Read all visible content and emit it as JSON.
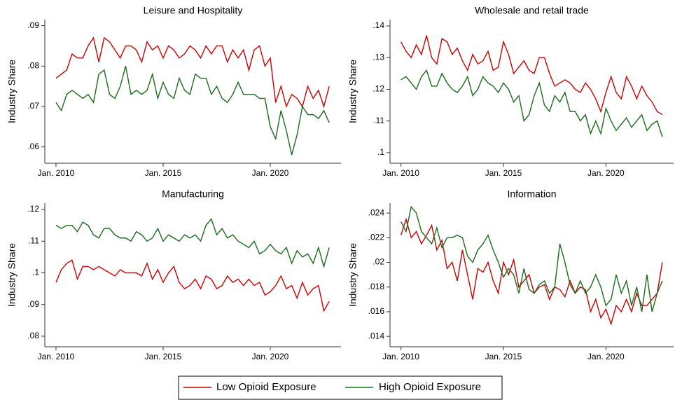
{
  "chart_data": [
    {
      "type": "line",
      "title": "Leisure and Hospitality",
      "y_label": "Industry Share",
      "x": [
        2010,
        2010.25,
        2010.5,
        2010.75,
        2011,
        2011.25,
        2011.5,
        2011.75,
        2012,
        2012.25,
        2012.5,
        2012.75,
        2013,
        2013.25,
        2013.5,
        2013.75,
        2014,
        2014.25,
        2014.5,
        2014.75,
        2015,
        2015.25,
        2015.5,
        2015.75,
        2016,
        2016.25,
        2016.5,
        2016.75,
        2017,
        2017.25,
        2017.5,
        2017.75,
        2018,
        2018.25,
        2018.5,
        2018.75,
        2019,
        2019.25,
        2019.5,
        2019.75,
        2020,
        2020.25,
        2020.5,
        2020.75,
        2021,
        2021.25,
        2021.5,
        2021.75,
        2022,
        2022.25,
        2022.5,
        2022.75
      ],
      "xlim": [
        2009.74,
        2023.3
      ],
      "xticks": [
        {
          "value": 2010,
          "label": "Jan. 2010"
        },
        {
          "value": 2015,
          "label": "Jan. 2015"
        },
        {
          "value": 2020,
          "label": "Jan. 2020"
        }
      ],
      "ylim": [
        0.057,
        0.0915
      ],
      "yticks": [
        {
          "value": 0.06,
          "label": ".06"
        },
        {
          "value": 0.07,
          "label": ".07"
        },
        {
          "value": 0.08,
          "label": ".08"
        },
        {
          "value": 0.09,
          "label": ".09"
        }
      ],
      "series": [
        {
          "name": "Low Opioid Exposure",
          "color": "#cc0000",
          "values": [
            0.077,
            0.078,
            0.079,
            0.083,
            0.082,
            0.082,
            0.085,
            0.087,
            0.081,
            0.087,
            0.086,
            0.084,
            0.082,
            0.085,
            0.085,
            0.084,
            0.081,
            0.086,
            0.084,
            0.085,
            0.082,
            0.085,
            0.084,
            0.082,
            0.083,
            0.085,
            0.084,
            0.082,
            0.085,
            0.083,
            0.085,
            0.085,
            0.081,
            0.084,
            0.082,
            0.084,
            0.079,
            0.084,
            0.085,
            0.08,
            0.082,
            0.071,
            0.075,
            0.07,
            0.073,
            0.072,
            0.07,
            0.075,
            0.072,
            0.074,
            0.07,
            0.075
          ]
        },
        {
          "name": "High Opioid Exposure",
          "color": "#1a6b1a",
          "values": [
            0.071,
            0.069,
            0.073,
            0.074,
            0.073,
            0.072,
            0.073,
            0.071,
            0.078,
            0.079,
            0.073,
            0.072,
            0.075,
            0.08,
            0.073,
            0.074,
            0.073,
            0.074,
            0.078,
            0.072,
            0.076,
            0.073,
            0.072,
            0.077,
            0.074,
            0.073,
            0.078,
            0.077,
            0.077,
            0.073,
            0.075,
            0.072,
            0.071,
            0.073,
            0.076,
            0.073,
            0.073,
            0.073,
            0.072,
            0.072,
            0.065,
            0.062,
            0.069,
            0.064,
            0.058,
            0.063,
            0.07,
            0.068,
            0.068,
            0.067,
            0.069,
            0.066
          ]
        }
      ]
    },
    {
      "type": "line",
      "title": "Wholesale and retail trade",
      "y_label": "Industry Share",
      "x": [
        2010,
        2010.25,
        2010.5,
        2010.75,
        2011,
        2011.25,
        2011.5,
        2011.75,
        2012,
        2012.25,
        2012.5,
        2012.75,
        2013,
        2013.25,
        2013.5,
        2013.75,
        2014,
        2014.25,
        2014.5,
        2014.75,
        2015,
        2015.25,
        2015.5,
        2015.75,
        2016,
        2016.25,
        2016.5,
        2016.75,
        2017,
        2017.25,
        2017.5,
        2017.75,
        2018,
        2018.25,
        2018.5,
        2018.75,
        2019,
        2019.25,
        2019.5,
        2019.75,
        2020,
        2020.25,
        2020.5,
        2020.75,
        2021,
        2021.25,
        2021.5,
        2021.75,
        2022,
        2022.25,
        2022.5,
        2022.75
      ],
      "xlim": [
        2009.74,
        2023.3
      ],
      "xticks": [
        {
          "value": 2010,
          "label": "Jan. 2010"
        },
        {
          "value": 2015,
          "label": "Jan. 2015"
        },
        {
          "value": 2020,
          "label": "Jan. 2020"
        }
      ],
      "ylim": [
        0.098,
        0.142
      ],
      "yticks": [
        {
          "value": 0.1,
          "label": ".1"
        },
        {
          "value": 0.11,
          "label": ".11"
        },
        {
          "value": 0.12,
          "label": ".12"
        },
        {
          "value": 0.13,
          "label": ".13"
        },
        {
          "value": 0.14,
          "label": ".14"
        }
      ],
      "series": [
        {
          "name": "Low Opioid Exposure",
          "color": "#cc0000",
          "values": [
            0.135,
            0.132,
            0.13,
            0.134,
            0.131,
            0.137,
            0.13,
            0.128,
            0.136,
            0.135,
            0.131,
            0.133,
            0.129,
            0.126,
            0.131,
            0.128,
            0.129,
            0.132,
            0.126,
            0.127,
            0.135,
            0.131,
            0.125,
            0.127,
            0.129,
            0.126,
            0.125,
            0.13,
            0.13,
            0.125,
            0.121,
            0.122,
            0.123,
            0.122,
            0.12,
            0.119,
            0.122,
            0.12,
            0.117,
            0.113,
            0.119,
            0.124,
            0.119,
            0.117,
            0.124,
            0.121,
            0.117,
            0.121,
            0.118,
            0.116,
            0.113,
            0.112
          ]
        },
        {
          "name": "High Opioid Exposure",
          "color": "#1a6b1a",
          "values": [
            0.123,
            0.124,
            0.122,
            0.12,
            0.124,
            0.126,
            0.121,
            0.121,
            0.125,
            0.122,
            0.12,
            0.119,
            0.121,
            0.124,
            0.118,
            0.12,
            0.124,
            0.122,
            0.121,
            0.119,
            0.122,
            0.12,
            0.116,
            0.118,
            0.11,
            0.112,
            0.118,
            0.122,
            0.115,
            0.113,
            0.118,
            0.116,
            0.119,
            0.113,
            0.113,
            0.11,
            0.112,
            0.106,
            0.11,
            0.106,
            0.114,
            0.11,
            0.107,
            0.109,
            0.111,
            0.108,
            0.11,
            0.112,
            0.107,
            0.109,
            0.11,
            0.105
          ]
        }
      ]
    },
    {
      "type": "line",
      "title": "Manufacturing",
      "y_label": "Industry Share",
      "x": [
        2010,
        2010.25,
        2010.5,
        2010.75,
        2011,
        2011.25,
        2011.5,
        2011.75,
        2012,
        2012.25,
        2012.5,
        2012.75,
        2013,
        2013.25,
        2013.5,
        2013.75,
        2014,
        2014.25,
        2014.5,
        2014.75,
        2015,
        2015.25,
        2015.5,
        2015.75,
        2016,
        2016.25,
        2016.5,
        2016.75,
        2017,
        2017.25,
        2017.5,
        2017.75,
        2018,
        2018.25,
        2018.5,
        2018.75,
        2019,
        2019.25,
        2019.5,
        2019.75,
        2020,
        2020.25,
        2020.5,
        2020.75,
        2021,
        2021.25,
        2021.5,
        2021.75,
        2022,
        2022.25,
        2022.5,
        2022.75
      ],
      "xlim": [
        2009.74,
        2023.3
      ],
      "xticks": [
        {
          "value": 2010,
          "label": "Jan. 2010"
        },
        {
          "value": 2015,
          "label": "Jan. 2015"
        },
        {
          "value": 2020,
          "label": "Jan. 2020"
        }
      ],
      "ylim": [
        0.078,
        0.122
      ],
      "yticks": [
        {
          "value": 0.08,
          "label": ".08"
        },
        {
          "value": 0.09,
          "label": ".09"
        },
        {
          "value": 0.1,
          "label": ".1"
        },
        {
          "value": 0.11,
          "label": ".11"
        },
        {
          "value": 0.12,
          "label": ".12"
        }
      ],
      "series": [
        {
          "name": "Low Opioid Exposure",
          "color": "#cc0000",
          "values": [
            0.097,
            0.101,
            0.103,
            0.104,
            0.098,
            0.102,
            0.102,
            0.101,
            0.102,
            0.101,
            0.1,
            0.099,
            0.101,
            0.1,
            0.1,
            0.1,
            0.099,
            0.103,
            0.098,
            0.101,
            0.097,
            0.1,
            0.102,
            0.097,
            0.095,
            0.096,
            0.098,
            0.095,
            0.099,
            0.098,
            0.095,
            0.096,
            0.099,
            0.097,
            0.098,
            0.096,
            0.098,
            0.096,
            0.097,
            0.093,
            0.094,
            0.096,
            0.099,
            0.095,
            0.096,
            0.092,
            0.097,
            0.093,
            0.095,
            0.096,
            0.088,
            0.091
          ]
        },
        {
          "name": "High Opioid Exposure",
          "color": "#1a6b1a",
          "values": [
            0.115,
            0.114,
            0.115,
            0.115,
            0.113,
            0.116,
            0.115,
            0.112,
            0.111,
            0.114,
            0.114,
            0.112,
            0.111,
            0.111,
            0.11,
            0.113,
            0.112,
            0.11,
            0.111,
            0.114,
            0.11,
            0.112,
            0.111,
            0.11,
            0.112,
            0.111,
            0.112,
            0.11,
            0.115,
            0.117,
            0.112,
            0.114,
            0.111,
            0.112,
            0.11,
            0.109,
            0.108,
            0.11,
            0.106,
            0.107,
            0.109,
            0.107,
            0.106,
            0.108,
            0.103,
            0.107,
            0.105,
            0.106,
            0.103,
            0.108,
            0.102,
            0.108
          ]
        }
      ]
    },
    {
      "type": "line",
      "title": "Information",
      "y_label": "Industry Share",
      "x": [
        2010,
        2010.25,
        2010.5,
        2010.75,
        2011,
        2011.25,
        2011.5,
        2011.75,
        2012,
        2012.25,
        2012.5,
        2012.75,
        2013,
        2013.25,
        2013.5,
        2013.75,
        2014,
        2014.25,
        2014.5,
        2014.75,
        2015,
        2015.25,
        2015.5,
        2015.75,
        2016,
        2016.25,
        2016.5,
        2016.75,
        2017,
        2017.25,
        2017.5,
        2017.75,
        2018,
        2018.25,
        2018.5,
        2018.75,
        2019,
        2019.25,
        2019.5,
        2019.75,
        2020,
        2020.25,
        2020.5,
        2020.75,
        2021,
        2021.25,
        2021.5,
        2021.75,
        2022,
        2022.25,
        2022.5,
        2022.75
      ],
      "xlim": [
        2009.74,
        2023.3
      ],
      "xticks": [
        {
          "value": 2010,
          "label": "Jan. 2010"
        },
        {
          "value": 2015,
          "label": "Jan. 2015"
        },
        {
          "value": 2020,
          "label": "Jan. 2020"
        }
      ],
      "ylim": [
        0.0135,
        0.0248
      ],
      "yticks": [
        {
          "value": 0.014,
          "label": ".014"
        },
        {
          "value": 0.016,
          "label": ".016"
        },
        {
          "value": 0.018,
          "label": ".018"
        },
        {
          "value": 0.02,
          "label": ".02"
        },
        {
          "value": 0.022,
          "label": ".022"
        },
        {
          "value": 0.024,
          "label": ".024"
        }
      ],
      "series": [
        {
          "name": "Low Opioid Exposure",
          "color": "#cc0000",
          "values": [
            0.0222,
            0.0235,
            0.022,
            0.0225,
            0.0215,
            0.0222,
            0.023,
            0.021,
            0.0218,
            0.0195,
            0.02,
            0.0185,
            0.021,
            0.019,
            0.017,
            0.0195,
            0.0192,
            0.02,
            0.0185,
            0.0175,
            0.02,
            0.019,
            0.0202,
            0.018,
            0.0185,
            0.019,
            0.0175,
            0.018,
            0.0182,
            0.017,
            0.018,
            0.0178,
            0.0172,
            0.0185,
            0.0175,
            0.018,
            0.0178,
            0.016,
            0.017,
            0.0155,
            0.0162,
            0.015,
            0.0165,
            0.016,
            0.017,
            0.016,
            0.0175,
            0.0165,
            0.0165,
            0.017,
            0.0175,
            0.02
          ]
        },
        {
          "name": "High Opioid Exposure",
          "color": "#1a6b1a",
          "values": [
            0.0233,
            0.0225,
            0.0245,
            0.024,
            0.0225,
            0.022,
            0.0215,
            0.0228,
            0.0212,
            0.022,
            0.022,
            0.0222,
            0.022,
            0.0205,
            0.02,
            0.021,
            0.0215,
            0.0222,
            0.021,
            0.02,
            0.0188,
            0.0195,
            0.019,
            0.0175,
            0.0195,
            0.0178,
            0.0175,
            0.0182,
            0.0185,
            0.0175,
            0.018,
            0.0215,
            0.02,
            0.0182,
            0.0175,
            0.0185,
            0.0175,
            0.018,
            0.019,
            0.018,
            0.0165,
            0.017,
            0.019,
            0.0175,
            0.0185,
            0.0165,
            0.018,
            0.016,
            0.019,
            0.016,
            0.0175,
            0.0185
          ]
        }
      ]
    }
  ]
}
